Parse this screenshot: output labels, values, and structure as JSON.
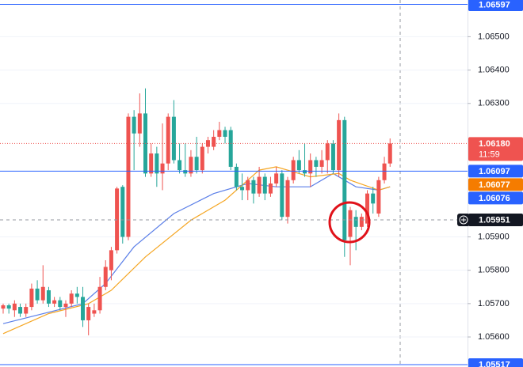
{
  "chart_data": {
    "type": "candlestick",
    "up_color": "#ef5350",
    "down_color": "#26a69a",
    "ylim": [
      1.0551,
      1.0661
    ],
    "yticks": [
      {
        "value": 1.065,
        "label": "1.06500"
      },
      {
        "value": 1.064,
        "label": "1.06400"
      },
      {
        "value": 1.063,
        "label": "1.06300"
      },
      {
        "value": 1.059,
        "label": "1.05900"
      },
      {
        "value": 1.058,
        "label": "1.05800"
      },
      {
        "value": 1.057,
        "label": "1.05700"
      },
      {
        "value": 1.056,
        "label": "1.05600"
      }
    ],
    "grid": true,
    "open": [
      1.05685,
      1.05695,
      1.0568,
      1.0569,
      1.0567,
      1.0569,
      1.05745,
      1.0571,
      1.0574,
      1.057,
      1.0571,
      1.0569,
      1.057,
      1.0573,
      1.0572,
      1.0565,
      1.0567,
      1.0568,
      1.0575,
      1.058,
      1.0586,
      1.0605,
      1.059,
      1.0626,
      1.0621,
      1.0627,
      1.0609,
      1.0615,
      1.0609,
      1.0612,
      1.0626,
      1.0613,
      1.061,
      1.0609,
      1.0614,
      1.061,
      1.0617,
      1.0617,
      1.062,
      1.0622,
      1.0622,
      1.0611,
      1.0605,
      1.0604,
      1.0607,
      1.0603,
      1.0608,
      1.0603,
      1.0606,
      1.0609,
      1.0596,
      1.0607,
      1.0613,
      1.061,
      1.0609,
      1.0613,
      1.0611,
      1.0613,
      1.0618,
      1.061,
      1.0625,
      1.059,
      1.0596,
      1.0593,
      1.0594,
      1.0603,
      1.0597,
      1.0607,
      1.0612
    ],
    "high": [
      1.057,
      1.057,
      1.0571,
      1.057,
      1.057,
      1.0576,
      1.0577,
      1.05815,
      1.0575,
      1.0572,
      1.0572,
      1.0571,
      1.0574,
      1.0575,
      1.0575,
      1.057,
      1.057,
      1.0578,
      1.0583,
      1.0587,
      1.0605,
      1.06055,
      1.0627,
      1.0628,
      1.0633,
      1.06345,
      1.0618,
      1.0617,
      1.0624,
      1.0627,
      1.0631,
      1.0618,
      1.0618,
      1.0616,
      1.062,
      1.0618,
      1.062,
      1.0622,
      1.06245,
      1.0623,
      1.0623,
      1.0612,
      1.0609,
      1.0608,
      1.0608,
      1.0611,
      1.0609,
      1.0608,
      1.0611,
      1.061,
      1.0608,
      1.0614,
      1.0616,
      1.0618,
      1.0615,
      1.0614,
      1.0616,
      1.0619,
      1.0619,
      1.0627,
      1.0626,
      1.0599,
      1.0598,
      1.0597,
      1.0604,
      1.0605,
      1.0608,
      1.0614,
      1.06195
    ],
    "low": [
      1.0567,
      1.0567,
      1.0566,
      1.0566,
      1.0566,
      1.0568,
      1.057,
      1.057,
      1.0569,
      1.0569,
      1.0568,
      1.0566,
      1.0569,
      1.057,
      1.0563,
      1.05605,
      1.0566,
      1.0567,
      1.0574,
      1.0577,
      1.0585,
      1.0588,
      1.0589,
      1.061,
      1.0617,
      1.0608,
      1.0608,
      1.0605,
      1.0604,
      1.061,
      1.0612,
      1.0609,
      1.0608,
      1.0608,
      1.0609,
      1.0609,
      1.0615,
      1.0616,
      1.0619,
      1.0618,
      1.061,
      1.0604,
      1.0601,
      1.0601,
      1.06,
      1.0602,
      1.0601,
      1.0602,
      1.0605,
      1.0595,
      1.0594,
      1.0606,
      1.0609,
      1.0608,
      1.0605,
      1.0608,
      1.0609,
      1.0609,
      1.0609,
      1.0608,
      1.0584,
      1.05815,
      1.0586,
      1.0592,
      1.0593,
      1.0597,
      1.0596,
      1.0606,
      1.0611
    ],
    "close": [
      1.05695,
      1.05685,
      1.057,
      1.0567,
      1.0569,
      1.05745,
      1.0571,
      1.0575,
      1.057,
      1.0571,
      1.0569,
      1.057,
      1.0573,
      1.0572,
      1.0565,
      1.0569,
      1.0568,
      1.0575,
      1.0581,
      1.0586,
      1.06045,
      1.059,
      1.0626,
      1.0621,
      1.0627,
      1.0609,
      1.0615,
      1.0609,
      1.0612,
      1.0626,
      1.0613,
      1.061,
      1.0609,
      1.0614,
      1.061,
      1.0617,
      1.0619,
      1.062,
      1.0622,
      1.062,
      1.0611,
      1.0605,
      1.0604,
      1.0607,
      1.0603,
      1.0608,
      1.0603,
      1.0606,
      1.0609,
      1.0596,
      1.0607,
      1.0613,
      1.061,
      1.0609,
      1.0613,
      1.0611,
      1.0613,
      1.0618,
      1.061,
      1.0625,
      1.0589,
      1.0598,
      1.0593,
      1.0596,
      1.0603,
      1.06,
      1.0607,
      1.0612,
      1.0618
    ],
    "ma_lines": [
      {
        "color": "#5b7fe8",
        "x": [
          0,
          14,
          18,
          23,
          30,
          37,
          43,
          48,
          54,
          58,
          62,
          66,
          68
        ],
        "values": [
          1.0564,
          1.057,
          1.0576,
          1.0587,
          1.0597,
          1.0603,
          1.0606,
          1.0605,
          1.0605,
          1.0609,
          1.0605,
          1.0604,
          1.0605
        ]
      },
      {
        "color": "#f5a623",
        "x": [
          0,
          8,
          15,
          19,
          25,
          33,
          39,
          45,
          48,
          54,
          59,
          61,
          66,
          68
        ],
        "values": [
          1.0561,
          1.0567,
          1.057,
          1.0574,
          1.0584,
          1.0595,
          1.0601,
          1.061,
          1.0611,
          1.0608,
          1.0609,
          1.0607,
          1.0604,
          1.0605
        ]
      }
    ],
    "price_lines": [
      {
        "value": 1.06597,
        "label": "1.06597",
        "color": "#2962ff",
        "style": "solid"
      },
      {
        "value": 1.0618,
        "label": "1.06180",
        "countdown": "11:59",
        "color": "#ef5350",
        "style": "dotted"
      },
      {
        "value": 1.06097,
        "label": "1.06097",
        "color": "#2962ff",
        "style": "solid"
      },
      {
        "value": 1.06077,
        "label": "1.06077",
        "color": "#f57c00",
        "style": "none"
      },
      {
        "value": 1.06076,
        "label": "1.06076",
        "color": "#2962ff",
        "style": "none"
      },
      {
        "value": 1.05951,
        "label": "1.05951",
        "color": "#131722",
        "style": "dashed"
      },
      {
        "value": 1.05517,
        "label": "1.05517",
        "color": "#2962ff",
        "style": "solid"
      }
    ]
  }
}
